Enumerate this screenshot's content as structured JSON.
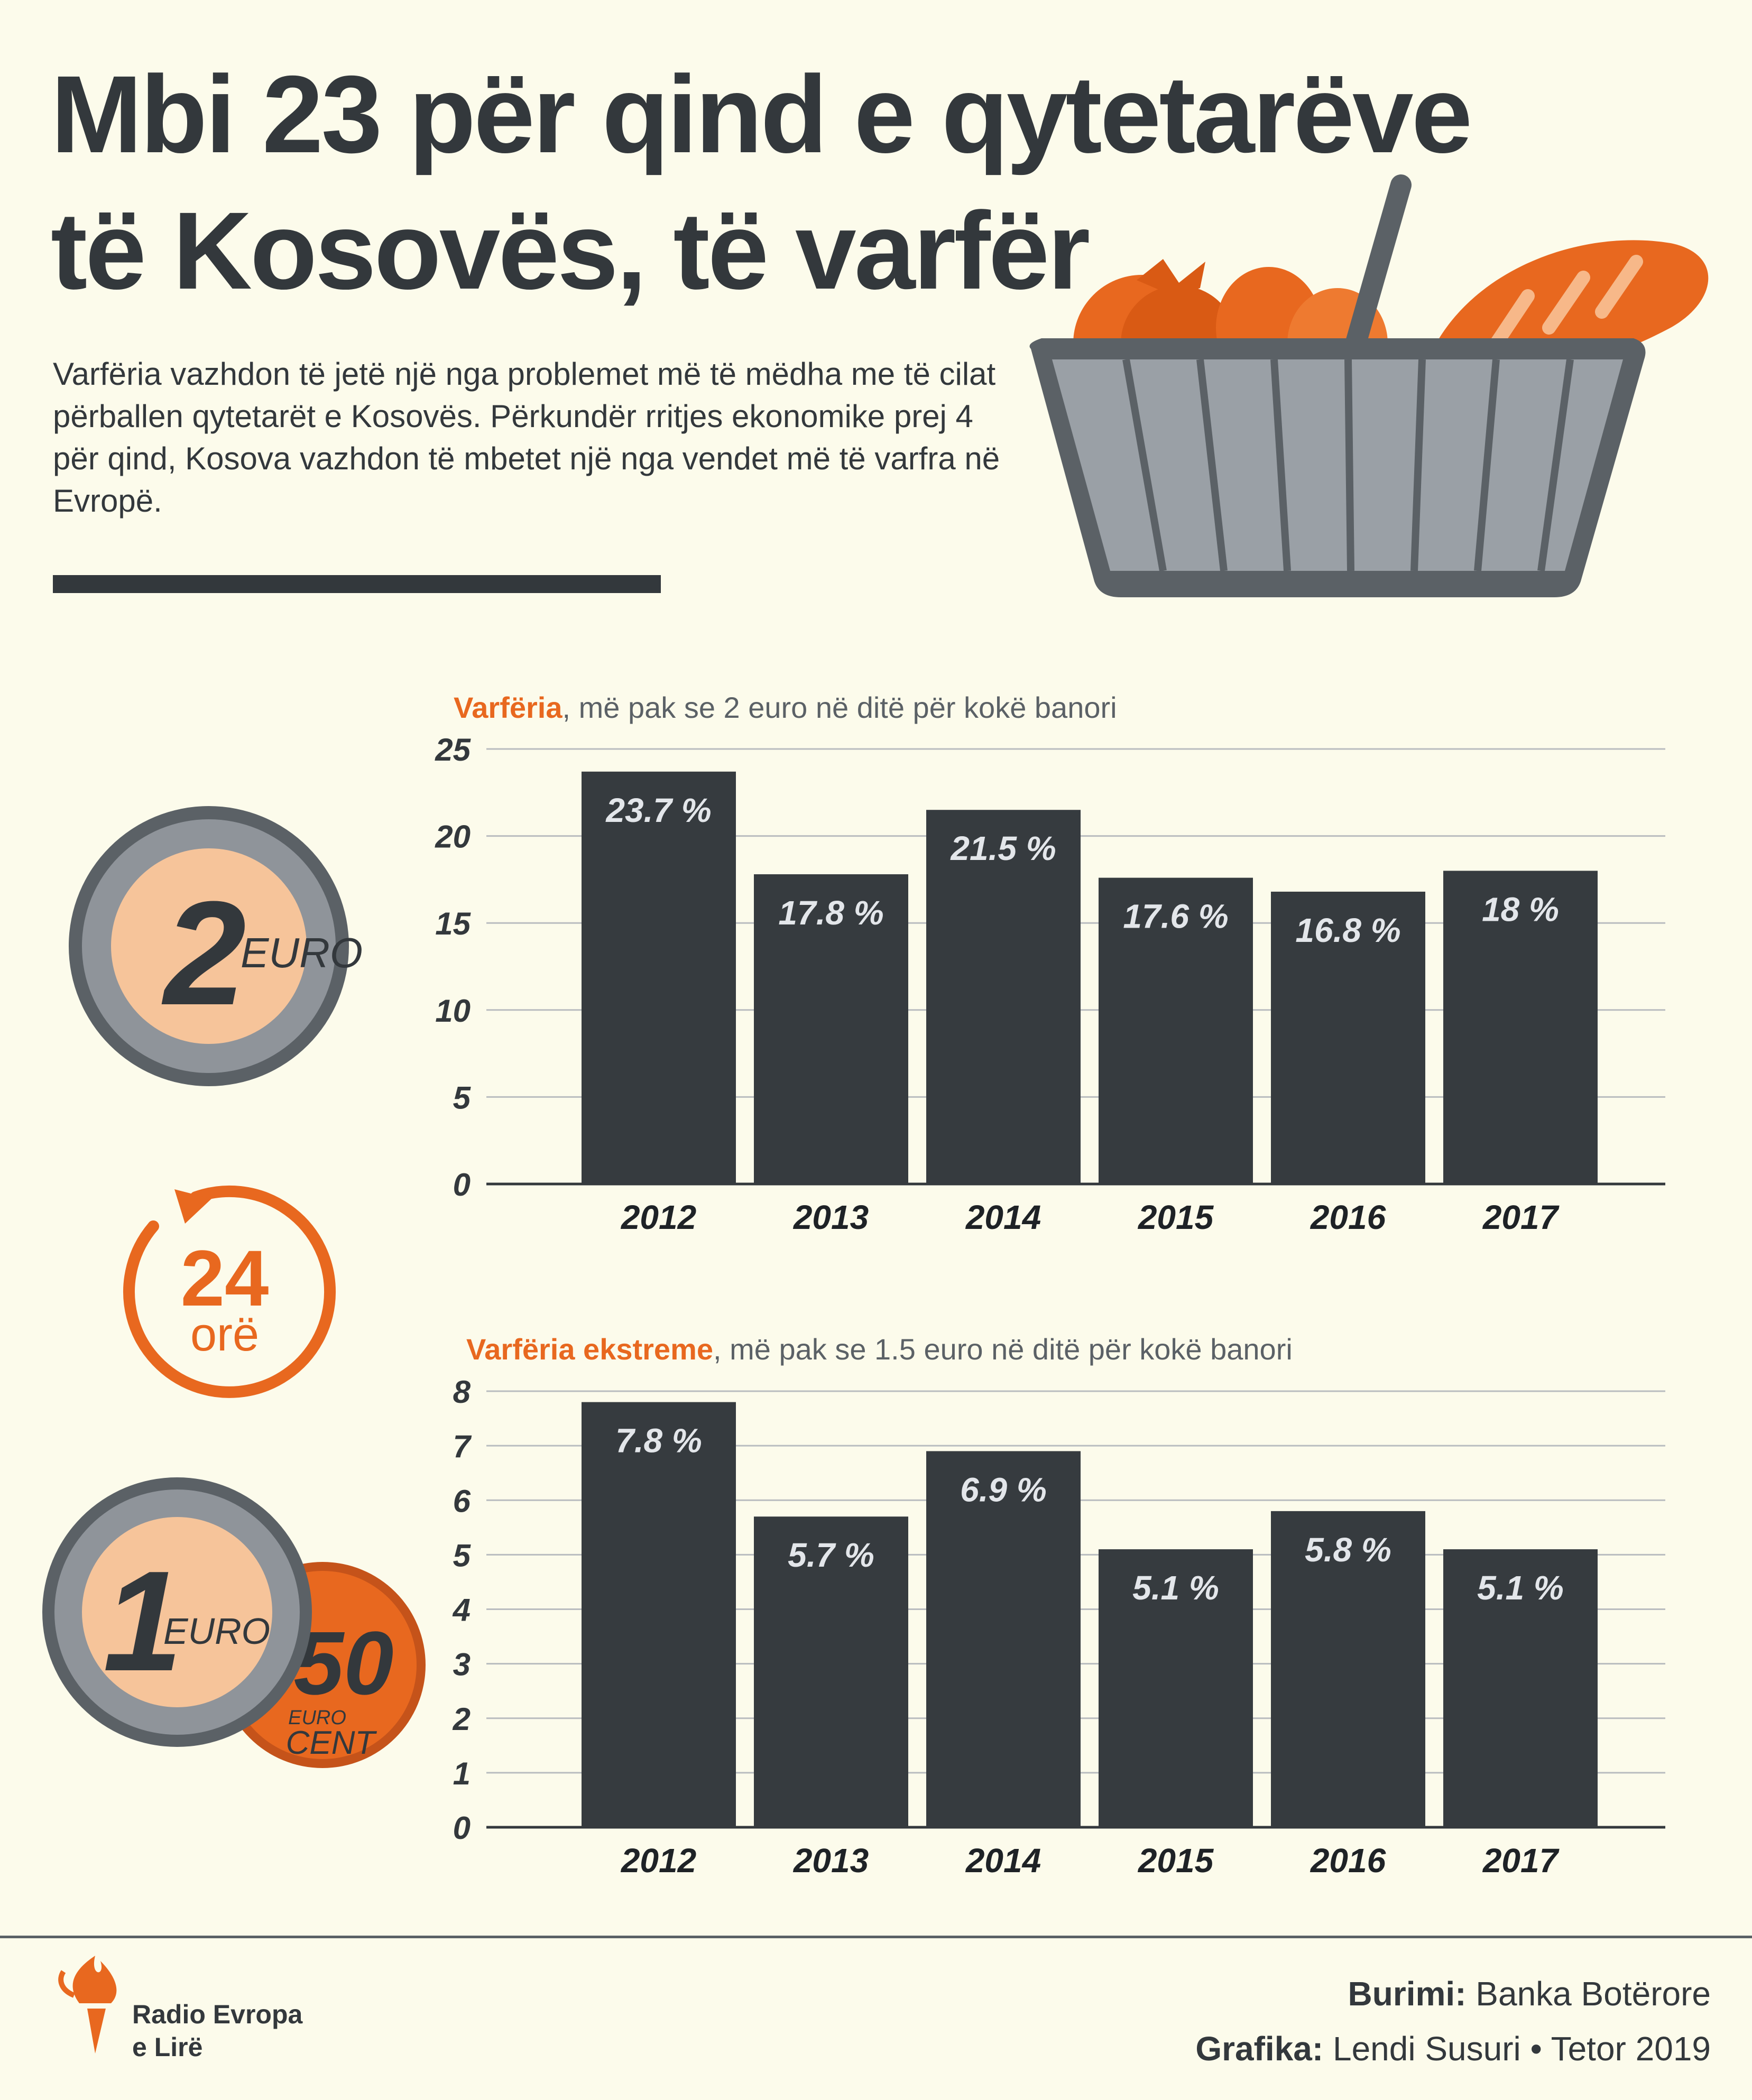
{
  "title": {
    "line1": "Mbi 23 për qind e qytetarëve",
    "line2": "të Kosovës, të varfër"
  },
  "intro": "Varfëria vazhdon të jetë një nga problemet më të mëdha me të cilat përballen qytetarët e Kosovës. Përkundër rritjes ekonomike prej 4 për qind, Kosova vazhdon të mbetet një nga vendet më të varfra në Evropë.",
  "coins": {
    "coin1_value": "2",
    "coin1_unit": "EURO",
    "timer_value": "24",
    "timer_unit": "orë",
    "coin2_value": "1",
    "coin2_unit": "EURO",
    "coin3_value": "50",
    "coin3_unit_top": "EURO",
    "coin3_unit_bottom": "CENT"
  },
  "colors": {
    "bar": "#363b3f",
    "accent": "#e8681f",
    "background": "#fcfbeb",
    "label": "#e3e6ea",
    "coin_ring": "#8f949a",
    "coin_face": "#f6c49a"
  },
  "chart_data": [
    {
      "type": "bar",
      "title_highlight": "Varfëria",
      "title_rest": ", më pak se 2 euro në ditë për kokë banori",
      "categories": [
        "2012",
        "2013",
        "2014",
        "2015",
        "2016",
        "2017"
      ],
      "values": [
        23.7,
        17.8,
        21.5,
        17.6,
        16.8,
        18
      ],
      "labels": [
        "23.7 %",
        "17.8 %",
        "21.5 %",
        "17.6 %",
        "16.8 %",
        "18 %"
      ],
      "ylim": [
        0,
        25
      ],
      "yticks": [
        0,
        5,
        10,
        15,
        20,
        25
      ],
      "grid": true
    },
    {
      "type": "bar",
      "title_highlight": "Varfëria ekstreme",
      "title_rest": ", më pak se 1.5 euro në ditë për kokë banori",
      "categories": [
        "2012",
        "2013",
        "2014",
        "2015",
        "2016",
        "2017"
      ],
      "values": [
        7.8,
        5.7,
        6.9,
        5.1,
        5.8,
        5.1
      ],
      "labels": [
        "7.8 %",
        "5.7 %",
        "6.9 %",
        "5.1 %",
        "5.8 %",
        "5.1 %"
      ],
      "ylim": [
        0,
        8
      ],
      "yticks": [
        0,
        1,
        2,
        3,
        4,
        5,
        6,
        7,
        8
      ],
      "grid": true
    }
  ],
  "footer": {
    "source_label": "Burimi:",
    "source_value": "Banka Botërore",
    "graphics_label": "Grafika:",
    "graphics_value": "Lendi Susuri • Tetor 2019",
    "brand_line1": "Radio Evropa",
    "brand_line2": "e Lirë"
  }
}
